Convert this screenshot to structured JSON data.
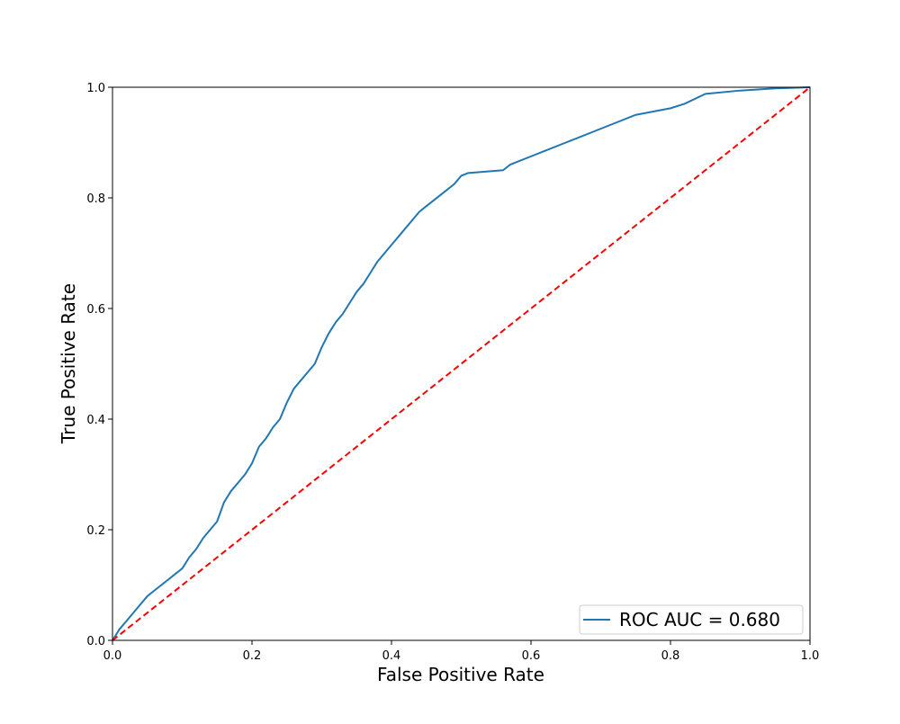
{
  "chart_data": {
    "type": "line",
    "title": "",
    "xlabel": "False Positive Rate",
    "ylabel": "True Positive Rate",
    "xlim": [
      0.0,
      1.0
    ],
    "ylim": [
      0.0,
      1.0
    ],
    "xticks": [
      0.0,
      0.2,
      0.4,
      0.6,
      0.8,
      1.0
    ],
    "yticks": [
      0.0,
      0.2,
      0.4,
      0.6,
      0.8,
      1.0
    ],
    "xtick_labels": [
      "0.0",
      "0.2",
      "0.4",
      "0.6",
      "0.8",
      "1.0"
    ],
    "ytick_labels": [
      "0.0",
      "0.2",
      "0.4",
      "0.6",
      "0.8",
      "1.0"
    ],
    "grid": false,
    "legend": {
      "placement": "lower-right"
    },
    "series": [
      {
        "name": "ROC AUC = 0.680",
        "color": "#1f77b4",
        "style": "solid",
        "x": [
          0.0,
          0.01,
          0.02,
          0.03,
          0.04,
          0.05,
          0.06,
          0.07,
          0.08,
          0.09,
          0.1,
          0.11,
          0.12,
          0.13,
          0.14,
          0.15,
          0.16,
          0.17,
          0.18,
          0.19,
          0.2,
          0.21,
          0.22,
          0.23,
          0.24,
          0.25,
          0.26,
          0.27,
          0.28,
          0.29,
          0.3,
          0.31,
          0.32,
          0.33,
          0.34,
          0.35,
          0.36,
          0.37,
          0.38,
          0.39,
          0.4,
          0.41,
          0.42,
          0.43,
          0.44,
          0.45,
          0.46,
          0.47,
          0.48,
          0.49,
          0.5,
          0.51,
          0.56,
          0.57,
          0.6,
          0.62,
          0.65,
          0.7,
          0.75,
          0.8,
          0.82,
          0.85,
          0.9,
          0.95,
          1.0
        ],
        "y": [
          0.0,
          0.02,
          0.035,
          0.05,
          0.065,
          0.08,
          0.09,
          0.1,
          0.11,
          0.12,
          0.13,
          0.15,
          0.165,
          0.185,
          0.2,
          0.215,
          0.25,
          0.27,
          0.285,
          0.3,
          0.32,
          0.35,
          0.365,
          0.385,
          0.4,
          0.43,
          0.455,
          0.47,
          0.485,
          0.5,
          0.53,
          0.555,
          0.575,
          0.59,
          0.61,
          0.63,
          0.645,
          0.665,
          0.685,
          0.7,
          0.715,
          0.73,
          0.745,
          0.76,
          0.775,
          0.785,
          0.795,
          0.805,
          0.815,
          0.825,
          0.84,
          0.845,
          0.85,
          0.86,
          0.875,
          0.885,
          0.9,
          0.925,
          0.95,
          0.962,
          0.97,
          0.988,
          0.994,
          0.998,
          1.0
        ]
      },
      {
        "name": "",
        "color": "#ff0000",
        "style": "dashed",
        "x": [
          0.0,
          1.0
        ],
        "y": [
          0.0,
          1.0
        ]
      }
    ]
  }
}
